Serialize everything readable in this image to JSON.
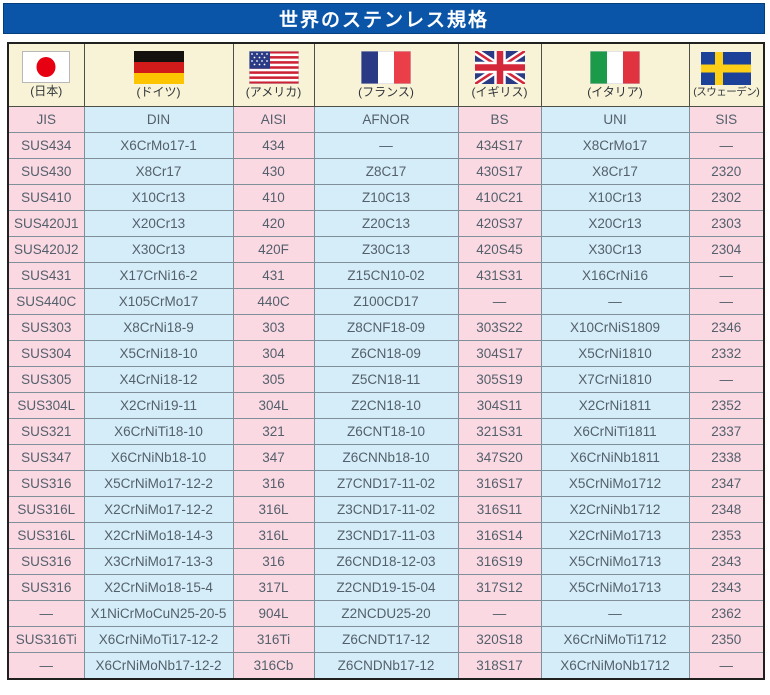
{
  "title": "世界のステンレス規格",
  "colors": {
    "title_bar": "#0a55a8",
    "flag_row_bg": "#f8f3d6",
    "pink_column_bg": "#fbd9e3",
    "blue_column_bg": "#d5edf8",
    "grid_line": "#7f909b",
    "text": "#53606b"
  },
  "table": {
    "countries": [
      "(日本)",
      "(ドイツ)",
      "(アメリカ)",
      "(フランス)",
      "(イギリス)",
      "(イタリア)",
      "(スウェーデン)"
    ],
    "flag_icons": [
      "japan-flag-icon",
      "germany-flag-icon",
      "usa-flag-icon",
      "france-flag-icon",
      "uk-flag-icon",
      "italy-flag-icon",
      "sweden-flag-icon"
    ],
    "columns": [
      "JIS",
      "DIN",
      "AISI",
      "AFNOR",
      "BS",
      "UNI",
      "SIS"
    ],
    "rows": [
      [
        "SUS434",
        "X6CrMo17-1",
        "434",
        "—",
        "434S17",
        "X8CrMo17",
        "—"
      ],
      [
        "SUS430",
        "X8Cr17",
        "430",
        "Z8C17",
        "430S17",
        "X8Cr17",
        "2320"
      ],
      [
        "SUS410",
        "X10Cr13",
        "410",
        "Z10C13",
        "410C21",
        "X10Cr13",
        "2302"
      ],
      [
        "SUS420J1",
        "X20Cr13",
        "420",
        "Z20C13",
        "420S37",
        "X20Cr13",
        "2303"
      ],
      [
        "SUS420J2",
        "X30Cr13",
        "420F",
        "Z30C13",
        "420S45",
        "X30Cr13",
        "2304"
      ],
      [
        "SUS431",
        "X17CrNi16-2",
        "431",
        "Z15CN10-02",
        "431S31",
        "X16CrNi16",
        "—"
      ],
      [
        "SUS440C",
        "X105CrMo17",
        "440C",
        "Z100CD17",
        "—",
        "—",
        "—"
      ],
      [
        "SUS303",
        "X8CrNi18-9",
        "303",
        "Z8CNF18-09",
        "303S22",
        "X10CrNiS1809",
        "2346"
      ],
      [
        "SUS304",
        "X5CrNi18-10",
        "304",
        "Z6CN18-09",
        "304S17",
        "X5CrNi1810",
        "2332"
      ],
      [
        "SUS305",
        "X4CrNi18-12",
        "305",
        "Z5CN18-11",
        "305S19",
        "X7CrNi1810",
        "—"
      ],
      [
        "SUS304L",
        "X2CrNi19-11",
        "304L",
        "Z2CN18-10",
        "304S11",
        "X2CrNi1811",
        "2352"
      ],
      [
        "SUS321",
        "X6CrNiTi18-10",
        "321",
        "Z6CNT18-10",
        "321S31",
        "X6CrNiTi1811",
        "2337"
      ],
      [
        "SUS347",
        "X6CrNiNb18-10",
        "347",
        "Z6CNNb18-10",
        "347S20",
        "X6CrNiNb1811",
        "2338"
      ],
      [
        "SUS316",
        "X5CrNiMo17-12-2",
        "316",
        "Z7CND17-11-02",
        "316S17",
        "X5CrNiMo1712",
        "2347"
      ],
      [
        "SUS316L",
        "X2CrNiMo17-12-2",
        "316L",
        "Z3CND17-11-02",
        "316S11",
        "X2CrNiNb1712",
        "2348"
      ],
      [
        "SUS316L",
        "X2CrNiMo18-14-3",
        "316L",
        "Z3CND17-11-03",
        "316S14",
        "X2CrNiMo1713",
        "2353"
      ],
      [
        "SUS316",
        "X3CrNiMo17-13-3",
        "316",
        "Z6CND18-12-03",
        "316S19",
        "X5CrNiMo1713",
        "2343"
      ],
      [
        "SUS316",
        "X2CrNiMo18-15-4",
        "317L",
        "Z2CND19-15-04",
        "317S12",
        "X5CrNiMo1713",
        "2343"
      ],
      [
        "—",
        "X1NiCrMoCuN25-20-5",
        "904L",
        "Z2NCDU25-20",
        "—",
        "—",
        "2362"
      ],
      [
        "SUS316Ti",
        "X6CrNiMoTi17-12-2",
        "316Ti",
        "Z6CNDT17-12",
        "320S18",
        "X6CrNiMoTi1712",
        "2350"
      ],
      [
        "—",
        "X6CrNiMoNb17-12-2",
        "316Cb",
        "Z6CNDNb17-12",
        "318S17",
        "X6CrNiMoNb1712",
        "—"
      ]
    ]
  }
}
